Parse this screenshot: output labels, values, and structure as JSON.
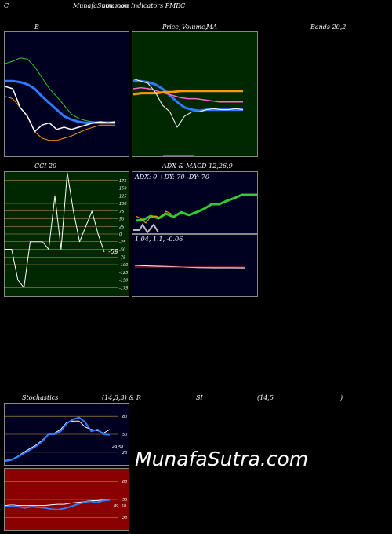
{
  "header": {
    "left": "C",
    "title": "MunafaSutra.com",
    "subtitle_overlap": "common Indicators PMEC"
  },
  "labels": {
    "b_panel": "B",
    "price_panel": "Price,",
    "volume_overlap": "Volume,",
    "ma": "MA",
    "bands": "Bands 20,2",
    "cci": "CCI 20",
    "adx_macd": "ADX  & MACD 12,26,9",
    "adx_values": "ADX: 0  +DY: 70  -DY: 70",
    "macd_values": "1.04,  1.1,  -0.06",
    "stochastics": "Stochastics",
    "stoch_params": "(14,3,3) & R",
    "si": "SI",
    "rsi_params": "(14,5",
    "close_paren": ")",
    "cci_value": "-59",
    "stoch_side": "49,58",
    "rsi_side": "49, 50"
  },
  "watermark": "MunafaSutra.com",
  "colors": {
    "panel_navy": "#000020",
    "panel_green": "#002800",
    "panel_red": "#8b0000",
    "blue_line": "#2f7bff",
    "green_line": "#2ecc2e",
    "orange_line": "#ff9900",
    "white_line": "#ffffff"
  },
  "chart_data": [
    {
      "type": "line",
      "name": "bollinger",
      "series": [
        {
          "values": [
            78,
            80,
            83,
            82,
            75,
            65,
            55,
            48,
            40,
            32,
            28,
            26,
            25,
            25,
            25,
            25
          ]
        },
        {
          "values": [
            62,
            62,
            61,
            59,
            55,
            48,
            42,
            36,
            30,
            27,
            25,
            24,
            24,
            24,
            24,
            24
          ]
        },
        {
          "values": [
            48,
            46,
            38,
            30,
            16,
            10,
            8,
            8,
            10,
            12,
            15,
            18,
            20,
            22,
            22,
            22
          ]
        },
        {
          "values": [
            57,
            55,
            38,
            30,
            16,
            22,
            24,
            18,
            20,
            18,
            20,
            22,
            24,
            25,
            24,
            25
          ]
        }
      ]
    },
    {
      "type": "line",
      "name": "price_ma",
      "series": [
        {
          "values": [
            62,
            62,
            61,
            59,
            55,
            49,
            43,
            38,
            36,
            35,
            36,
            36,
            36,
            36,
            36,
            36
          ]
        },
        {
          "values": [
            55,
            56,
            55,
            53,
            51,
            49,
            47,
            46,
            46,
            45,
            44,
            43,
            43,
            43,
            43
          ]
        },
        {
          "values": [
            50,
            51,
            51,
            51,
            52,
            52,
            53,
            53,
            53,
            53,
            53,
            53,
            53,
            53,
            53
          ]
        },
        {
          "values": [
            64,
            62,
            60,
            52,
            40,
            34,
            20,
            30,
            34,
            34,
            36,
            37,
            36,
            36,
            37,
            36
          ]
        }
      ]
    },
    {
      "type": "line",
      "name": "cci",
      "yticks": [
        "175",
        "150",
        "125",
        "100",
        "75",
        "50",
        "25",
        "0",
        "-25",
        "-50",
        "-75",
        "-100",
        "-125",
        "-150",
        "-175"
      ],
      "values": [
        -50,
        -50,
        -150,
        -175,
        -25,
        -25,
        -25,
        -50,
        125,
        -50,
        200,
        75,
        -25,
        25,
        75,
        0,
        -59
      ]
    },
    {
      "type": "line",
      "name": "adx",
      "values": [
        20,
        22,
        30,
        25,
        35,
        28,
        38,
        32,
        38,
        45,
        55,
        55,
        62,
        68,
        75,
        75,
        75
      ],
      "dy_values": [
        30,
        25,
        15,
        28,
        30,
        25,
        40,
        35
      ]
    },
    {
      "type": "line",
      "name": "macd",
      "values": [
        1.5,
        1.4,
        1.3,
        1.2,
        1.1,
        1.05,
        1.05,
        1.04
      ]
    },
    {
      "type": "line",
      "name": "stochastics",
      "yticks": [
        "80",
        "50",
        "20"
      ],
      "values": [
        5,
        7,
        12,
        18,
        24,
        30,
        38,
        50,
        50,
        55,
        68,
        75,
        78,
        70,
        55,
        58,
        50,
        49
      ],
      "signal": [
        6,
        8,
        13,
        20,
        26,
        32,
        40,
        50,
        52,
        58,
        70,
        72,
        72,
        62,
        58,
        56,
        52,
        58
      ]
    },
    {
      "type": "line",
      "name": "rsi",
      "yticks": [
        "80",
        "50",
        "20"
      ],
      "values": [
        38,
        40,
        38,
        36,
        38,
        37,
        36,
        34,
        33,
        35,
        38,
        42,
        45,
        47,
        45,
        48,
        49
      ],
      "signal": [
        40,
        41,
        40,
        40,
        40,
        40,
        40,
        41,
        42,
        42,
        44,
        45,
        46,
        48,
        48,
        49,
        50
      ]
    }
  ]
}
